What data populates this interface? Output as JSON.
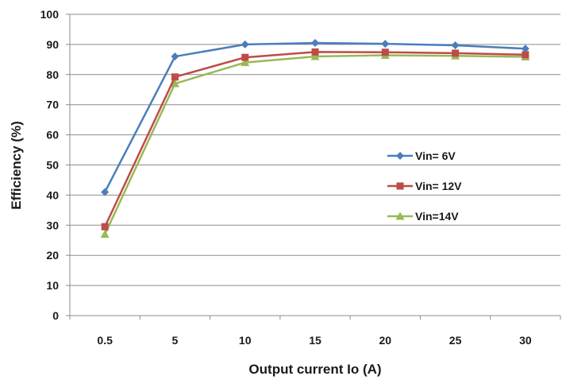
{
  "chart_data": {
    "type": "line",
    "xlabel": "Output current Io (A)",
    "ylabel": "Efficiency (%)",
    "categories": [
      "0.5",
      "5",
      "10",
      "15",
      "20",
      "25",
      "30"
    ],
    "ylim": [
      0,
      100
    ],
    "yticks": [
      0,
      10,
      20,
      30,
      40,
      50,
      60,
      70,
      80,
      90,
      100
    ],
    "grid": "horizontal",
    "legend_position": "right",
    "series": [
      {
        "name": "Vin= 6V",
        "color": "#4a7ebb",
        "marker": "diamond",
        "values": [
          41,
          86,
          90,
          90.5,
          90.2,
          89.7,
          88.6
        ]
      },
      {
        "name": "Vin= 12V",
        "color": "#be4b48",
        "marker": "square",
        "values": [
          29.5,
          79.2,
          85.7,
          87.5,
          87.4,
          87.1,
          86.6
        ]
      },
      {
        "name": "Vin=14V",
        "color": "#98b954",
        "marker": "triangle",
        "values": [
          27,
          77,
          84,
          86,
          86.4,
          86.2,
          85.9
        ]
      }
    ]
  }
}
